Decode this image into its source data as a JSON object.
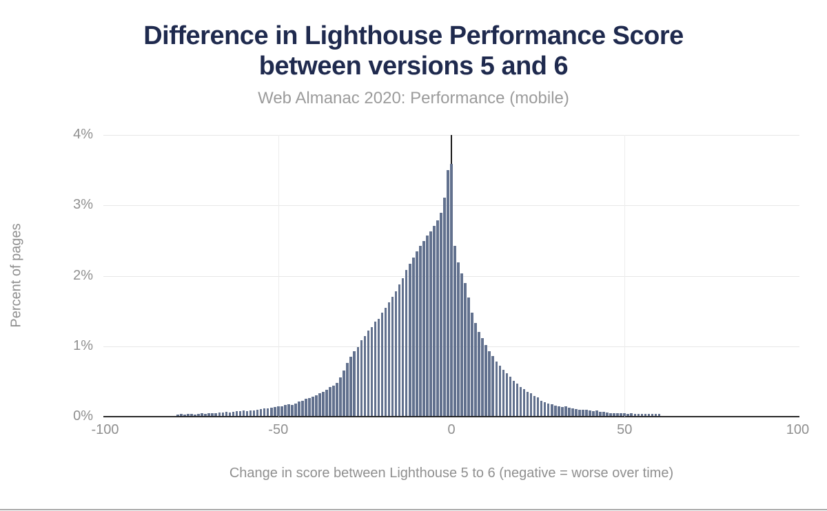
{
  "header": {
    "title_line1": "Difference in Lighthouse Performance Score",
    "title_line2": "between versions 5 and 6",
    "subtitle": "Web Almanac 2020: Performance (mobile)"
  },
  "colors": {
    "title": "#1f2a4e",
    "subtitle_gray": "#9b9b9b",
    "axis_text_gray": "#8f8f8f",
    "bar_fill": "#62718e",
    "gridline": "#e7e7e7",
    "axis_line": "#262626",
    "zero_line": "#1a1a1a"
  },
  "chart_data": {
    "type": "bar",
    "title": "Difference in Lighthouse Performance Score between versions 5 and 6",
    "subtitle": "Web Almanac 2020: Performance (mobile)",
    "xlabel": "Change in score between Lighthouse 5 to 6 (negative = worse over time)",
    "ylabel": "Percent of pages",
    "xlim": [
      -100.5,
      100.5
    ],
    "ylim": [
      0,
      4
    ],
    "xticks": [
      -100,
      -50,
      0,
      50,
      100
    ],
    "ytick_labels": [
      "0%",
      "1%",
      "2%",
      "3%",
      "4%"
    ],
    "ytick_values": [
      0,
      1,
      2,
      3,
      4
    ],
    "grid": true,
    "vertical_gridlines": [
      -50,
      50
    ],
    "zero_reference_line": 0,
    "legend": "none",
    "x_start": -79,
    "x_end": 60,
    "x_step": 1,
    "x": [
      -79,
      -78,
      -77,
      -76,
      -75,
      -74,
      -73,
      -72,
      -71,
      -70,
      -69,
      -68,
      -67,
      -66,
      -65,
      -64,
      -63,
      -62,
      -61,
      -60,
      -59,
      -58,
      -57,
      -56,
      -55,
      -54,
      -53,
      -52,
      -51,
      -50,
      -49,
      -48,
      -47,
      -46,
      -45,
      -44,
      -43,
      -42,
      -41,
      -40,
      -39,
      -38,
      -37,
      -36,
      -35,
      -34,
      -33,
      -32,
      -31,
      -30,
      -29,
      -28,
      -27,
      -26,
      -25,
      -24,
      -23,
      -22,
      -21,
      -20,
      -19,
      -18,
      -17,
      -16,
      -15,
      -14,
      -13,
      -12,
      -11,
      -10,
      -9,
      -8,
      -7,
      -6,
      -5,
      -4,
      -3,
      -2,
      -1,
      0,
      1,
      2,
      3,
      4,
      5,
      6,
      7,
      8,
      9,
      10,
      11,
      12,
      13,
      14,
      15,
      16,
      17,
      18,
      19,
      20,
      21,
      22,
      23,
      24,
      25,
      26,
      27,
      28,
      29,
      30,
      31,
      32,
      33,
      34,
      35,
      36,
      37,
      38,
      39,
      40,
      41,
      42,
      43,
      44,
      45,
      46,
      47,
      48,
      49,
      50,
      51,
      52,
      53,
      54,
      55,
      56,
      57,
      58,
      59,
      60
    ],
    "values": [
      0.02,
      0.03,
      0.02,
      0.03,
      0.03,
      0.02,
      0.03,
      0.04,
      0.03,
      0.04,
      0.04,
      0.04,
      0.05,
      0.05,
      0.06,
      0.05,
      0.06,
      0.07,
      0.07,
      0.08,
      0.07,
      0.08,
      0.08,
      0.09,
      0.1,
      0.11,
      0.11,
      0.12,
      0.13,
      0.14,
      0.14,
      0.16,
      0.17,
      0.16,
      0.18,
      0.21,
      0.22,
      0.24,
      0.25,
      0.27,
      0.29,
      0.32,
      0.34,
      0.37,
      0.41,
      0.43,
      0.47,
      0.55,
      0.65,
      0.75,
      0.84,
      0.92,
      0.98,
      1.08,
      1.13,
      1.21,
      1.26,
      1.34,
      1.38,
      1.47,
      1.54,
      1.61,
      1.69,
      1.77,
      1.87,
      1.96,
      2.07,
      2.16,
      2.25,
      2.34,
      2.42,
      2.48,
      2.56,
      2.62,
      2.7,
      2.78,
      2.89,
      3.1,
      3.49,
      3.58,
      2.42,
      2.18,
      2.02,
      1.89,
      1.68,
      1.47,
      1.32,
      1.19,
      1.11,
      1.01,
      0.92,
      0.85,
      0.77,
      0.71,
      0.66,
      0.61,
      0.56,
      0.5,
      0.46,
      0.41,
      0.38,
      0.34,
      0.32,
      0.28,
      0.26,
      0.22,
      0.2,
      0.18,
      0.17,
      0.15,
      0.14,
      0.13,
      0.14,
      0.12,
      0.11,
      0.1,
      0.09,
      0.09,
      0.09,
      0.08,
      0.07,
      0.08,
      0.06,
      0.06,
      0.05,
      0.04,
      0.04,
      0.04,
      0.04,
      0.04,
      0.03,
      0.04,
      0.03,
      0.03,
      0.03,
      0.03,
      0.03,
      0.03,
      0.03,
      0.03
    ]
  }
}
